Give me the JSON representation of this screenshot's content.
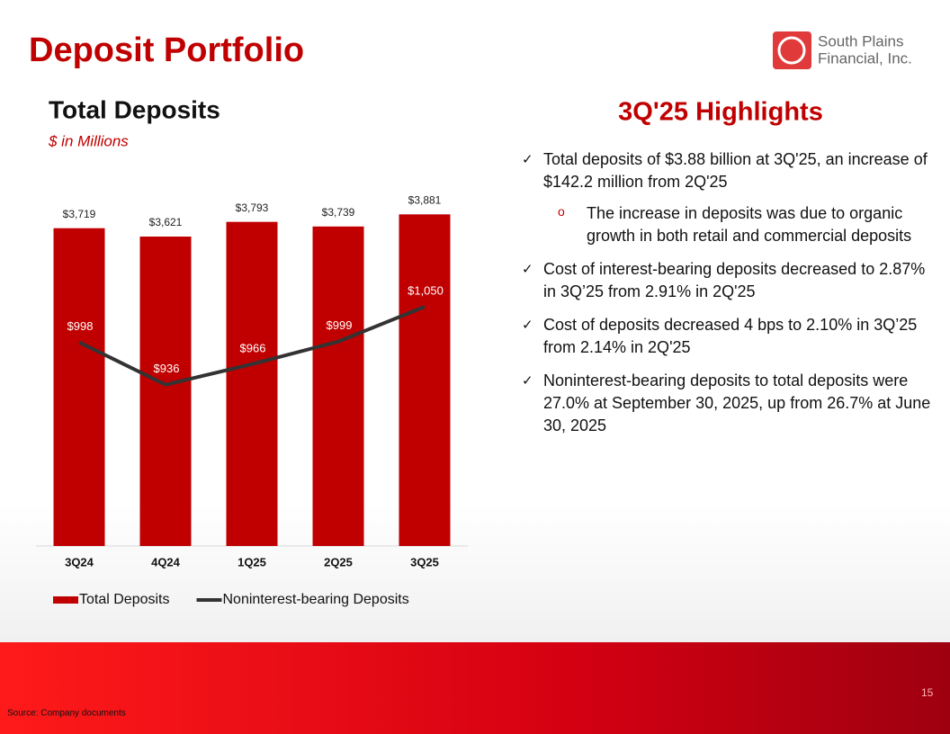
{
  "header": {
    "title": "Deposit Portfolio"
  },
  "logo": {
    "line1": "South Plains",
    "line2": "Financial, Inc."
  },
  "chart_data": {
    "type": "bar-line",
    "title": "Total Deposits",
    "subtitle": "$ in Millions",
    "categories": [
      "3Q24",
      "4Q24",
      "1Q25",
      "2Q25",
      "3Q25"
    ],
    "series": [
      {
        "name": "Total Deposits",
        "type": "bar",
        "color": "#c00000",
        "values": [
          3719,
          3621,
          3793,
          3739,
          3881
        ],
        "value_labels": [
          "$3,719",
          "$3,621",
          "$3,793",
          "$3,739",
          "$3,881"
        ]
      },
      {
        "name": "Noninterest-bearing Deposits",
        "type": "line",
        "axis": "y2",
        "color": "#333333",
        "values": [
          998,
          936,
          966,
          999,
          1050
        ],
        "value_labels": [
          "$998",
          "$936",
          "$966",
          "$999",
          "$1,050"
        ]
      }
    ],
    "ylim": [
      0,
      4000
    ],
    "y2lim": [
      700,
      1200
    ],
    "legend": "bottom"
  },
  "highlights": {
    "title": "3Q'25 Highlights",
    "items": [
      {
        "text": "Total deposits of $3.88 billion at 3Q'25, an increase of $142.2 million from 2Q'25",
        "sub": [
          "The increase in deposits was due to organic growth in both retail and commercial deposits"
        ]
      },
      {
        "text": "Cost of interest-bearing deposits decreased to 2.87% in 3Q’25 from 2.91% in 2Q'25"
      },
      {
        "text": "Cost of deposits decreased 4 bps to 2.10% in 3Q’25 from 2.14% in 2Q'25"
      },
      {
        "text": "Noninterest-bearing deposits to total deposits were 27.0% at September 30, 2025, up from 26.7% at June 30, 2025"
      }
    ]
  },
  "footer": {
    "source": "Source: Company documents",
    "page": "15"
  }
}
